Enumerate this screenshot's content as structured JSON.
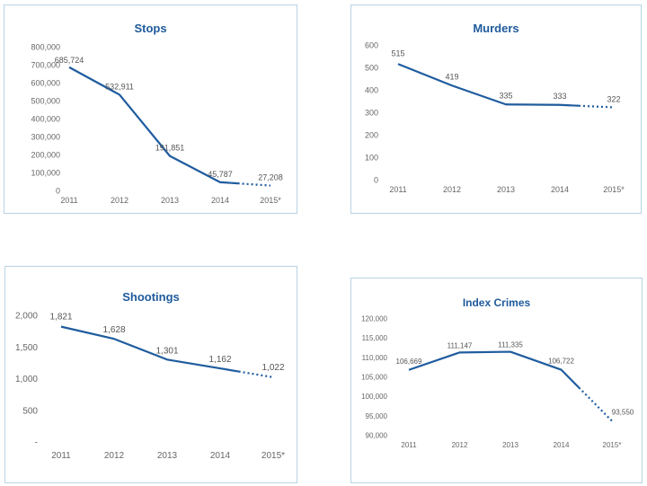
{
  "chart_data": [
    {
      "type": "line",
      "title": "Stops",
      "categories": [
        "2011",
        "2012",
        "2013",
        "2014",
        "2015*"
      ],
      "values": [
        685724,
        532911,
        191851,
        45787,
        27208
      ],
      "data_labels": [
        "685,724",
        "532,911",
        "191,851",
        "45,787",
        "27,208"
      ],
      "yticks": [
        0,
        100000,
        200000,
        300000,
        400000,
        500000,
        600000,
        700000,
        800000
      ],
      "ytick_labels": [
        "0",
        "100,000",
        "200,000",
        "300,000",
        "400,000",
        "500,000",
        "600,000",
        "700,000",
        "800,000"
      ],
      "ylim": [
        0,
        800000
      ],
      "last_segment": "dotted",
      "color": "#1f5c9e",
      "grid": false,
      "legend": "none"
    },
    {
      "type": "line",
      "title": "Murders",
      "categories": [
        "2011",
        "2012",
        "2013",
        "2014",
        "2015*"
      ],
      "values": [
        515,
        419,
        335,
        333,
        322
      ],
      "data_labels": [
        "515",
        "419",
        "335",
        "333",
        "322"
      ],
      "yticks": [
        0,
        100,
        200,
        300,
        400,
        500,
        600
      ],
      "ytick_labels": [
        "0",
        "100",
        "200",
        "300",
        "400",
        "500",
        "600"
      ],
      "ylim": [
        0,
        600
      ],
      "last_segment": "dotted",
      "color": "#1f5c9e",
      "grid": false,
      "legend": "none"
    },
    {
      "type": "line",
      "title": "Shootings",
      "categories": [
        "2011",
        "2012",
        "2013",
        "2014",
        "2015*"
      ],
      "values": [
        1821,
        1628,
        1301,
        1162,
        1022
      ],
      "data_labels": [
        "1,821",
        "1,628",
        "1,301",
        "1,162",
        "1,022"
      ],
      "yticks": [
        0,
        500,
        1000,
        1500,
        2000
      ],
      "ytick_labels": [
        "-",
        "500",
        "1,000",
        "1,500",
        "2,000"
      ],
      "ylim": [
        0,
        2000
      ],
      "last_segment": "dotted",
      "color": "#1f5c9e",
      "grid": false,
      "legend": "none"
    },
    {
      "type": "line",
      "title": "Index Crimes",
      "categories": [
        "2011",
        "2012",
        "2013",
        "2014",
        "2015*"
      ],
      "values": [
        106669,
        111147,
        111335,
        106722,
        93550
      ],
      "data_labels": [
        "106,669",
        "111,147",
        "111,335",
        "106,722",
        "93,550"
      ],
      "yticks": [
        90000,
        95000,
        100000,
        105000,
        110000,
        115000,
        120000
      ],
      "ytick_labels": [
        "90,000",
        "95,000",
        "100,000",
        "105,000",
        "110,000",
        "115,000",
        "120,000"
      ],
      "ylim": [
        90000,
        120000
      ],
      "last_segment": "dotted",
      "color": "#1f5c9e",
      "grid": false,
      "legend": "none"
    }
  ]
}
